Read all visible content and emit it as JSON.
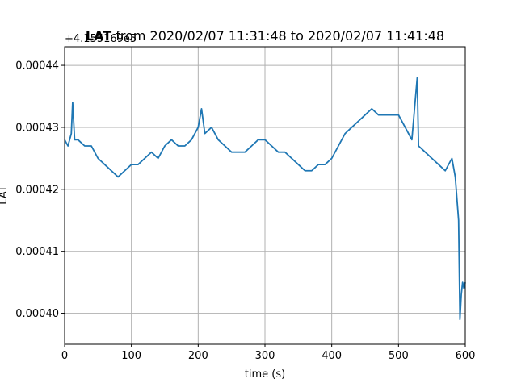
{
  "chart_data": {
    "type": "line",
    "title_parts": {
      "variable": "LAT",
      "rest": " from 2020/02/07 11:31:48 to 2020/02/07 11:41:48"
    },
    "xlabel": "time (s)",
    "ylabel": "LAT",
    "offset_text": "+4.155169e5",
    "xlim": [
      0,
      600
    ],
    "ylim": [
      0.000395,
      0.000443
    ],
    "xticks": [
      0,
      100,
      200,
      300,
      400,
      500,
      600
    ],
    "xtick_labels": [
      "0",
      "100",
      "200",
      "300",
      "400",
      "500",
      "600"
    ],
    "yticks": [
      0.0004,
      0.00041,
      0.00042,
      0.00043,
      0.00044
    ],
    "ytick_labels": [
      "0.00040",
      "0.00041",
      "0.00042",
      "0.00043",
      "0.00044"
    ],
    "grid": true,
    "series_color": "#1f77b4",
    "series": [
      {
        "values_note_free": true,
        "x": [
          0,
          5,
          10,
          12,
          15,
          20,
          30,
          40,
          50,
          60,
          70,
          80,
          90,
          100,
          110,
          120,
          130,
          140,
          150,
          160,
          170,
          180,
          190,
          200,
          205,
          210,
          220,
          230,
          240,
          250,
          260,
          270,
          280,
          290,
          300,
          310,
          320,
          330,
          340,
          350,
          360,
          370,
          380,
          390,
          400,
          410,
          420,
          430,
          440,
          450,
          460,
          470,
          480,
          490,
          500,
          510,
          520,
          528,
          530,
          540,
          550,
          560,
          570,
          580,
          585,
          590,
          592,
          594,
          596,
          598,
          600
        ],
        "y": [
          0.000428,
          0.000427,
          0.000429,
          0.000434,
          0.000428,
          0.000428,
          0.000427,
          0.000427,
          0.000425,
          0.000424,
          0.000423,
          0.000422,
          0.000423,
          0.000424,
          0.000424,
          0.000425,
          0.000426,
          0.000425,
          0.000427,
          0.000428,
          0.000427,
          0.000427,
          0.000428,
          0.00043,
          0.000433,
          0.000429,
          0.00043,
          0.000428,
          0.000427,
          0.000426,
          0.000426,
          0.000426,
          0.000427,
          0.000428,
          0.000428,
          0.000427,
          0.000426,
          0.000426,
          0.000425,
          0.000424,
          0.000423,
          0.000423,
          0.000424,
          0.000424,
          0.000425,
          0.000427,
          0.000429,
          0.00043,
          0.000431,
          0.000432,
          0.000433,
          0.000432,
          0.000432,
          0.000432,
          0.000432,
          0.00043,
          0.000428,
          0.000438,
          0.000427,
          0.000426,
          0.000425,
          0.000424,
          0.000423,
          0.000425,
          0.000422,
          0.000415,
          0.000399,
          0.000403,
          0.000405,
          0.000404,
          0.000405
        ]
      }
    ]
  }
}
